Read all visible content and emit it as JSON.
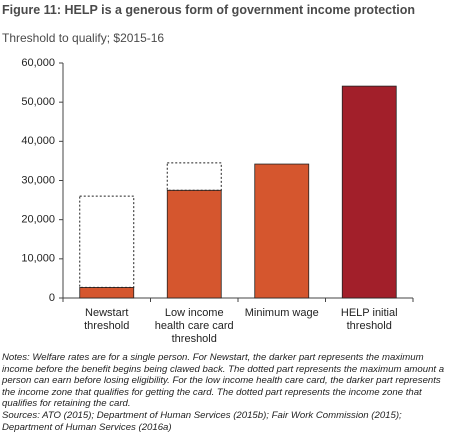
{
  "chart_data": {
    "type": "bar",
    "title": "Figure 11: HELP is a generous form of government income protection",
    "subtitle": "Threshold to qualify; $2015-16",
    "categories": [
      "Newstart threshold",
      "Low income health care card threshold",
      "Minimum wage",
      "HELP initial threshold"
    ],
    "series": [
      {
        "colors": [
          "#d5562e",
          "#d5562e",
          "#d5562e",
          "#a21f2a"
        ],
        "values": [
          2700,
          27500,
          34200,
          54100
        ]
      },
      {
        "style": "dotted",
        "values": [
          23300,
          7000,
          null,
          null
        ]
      }
    ],
    "ylim": [
      0,
      60000
    ],
    "yticks": [
      0,
      {
        "value": 10000,
        "label": "10,000"
      },
      {
        "value": 20000,
        "label": "20,000"
      },
      {
        "value": 30000,
        "label": "30,000"
      },
      {
        "value": 40000,
        "label": "40,000"
      },
      {
        "value": 50000,
        "label": "50,000"
      },
      {
        "value": 60000,
        "label": "60,000"
      }
    ],
    "notes": "Notes: Welfare rates are for a single person. For Newstart, the darker part represents the maximum income before the benefit begins being clawed back. The dotted part represents the maximum amount a person can earn before losing eligibility. For the low income health care card, the darker part represents the income zone that qualifies for getting the card. The dotted part represents the income zone that qualifies for retaining the card.",
    "sources": "Sources: ATO (2015); Department of Human Services (2015b); Fair Work Commission (2015); Department of Human Services (2016a)"
  }
}
